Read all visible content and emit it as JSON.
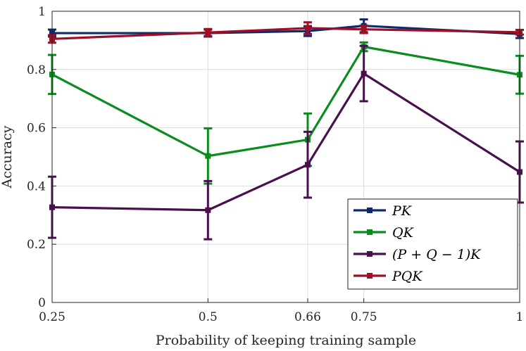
{
  "chart_data": {
    "type": "line",
    "xlabel": "Probability of keeping training sample",
    "ylabel": "Accuracy",
    "x": [
      0.25,
      0.5,
      0.66,
      0.75,
      1
    ],
    "x_tick_labels": [
      "0.25",
      "0.5",
      "0.66",
      "0.75",
      "1"
    ],
    "xlim": [
      0.25,
      1
    ],
    "ylim": [
      0,
      1
    ],
    "y_ticks": [
      0,
      0.2,
      0.4,
      0.6,
      0.8,
      1
    ],
    "y_tick_labels": [
      "0",
      "0.2",
      "0.4",
      "0.6",
      "0.8",
      "1"
    ],
    "grid": true,
    "legend_position": "bottom-right",
    "series": [
      {
        "name": "PK",
        "color": "#0f2a6b",
        "values": [
          0.925,
          0.925,
          0.932,
          0.95,
          0.922
        ],
        "errors": [
          0.012,
          0.012,
          0.017,
          0.022,
          0.014
        ]
      },
      {
        "name": "QK",
        "color": "#0a8c1e",
        "values": [
          0.783,
          0.503,
          0.559,
          0.878,
          0.782
        ],
        "errors": [
          0.067,
          0.095,
          0.09,
          0.015,
          0.065
        ]
      },
      {
        "name": "(P + Q − 1)K",
        "color": "#4a0f4e",
        "values": [
          0.327,
          0.317,
          0.473,
          0.786,
          0.448
        ],
        "errors": [
          0.105,
          0.1,
          0.113,
          0.095,
          0.105
        ]
      },
      {
        "name": "PQK",
        "color": "#9e0f26",
        "values": [
          0.905,
          0.927,
          0.942,
          0.938,
          0.928
        ],
        "errors": [
          0.013,
          0.012,
          0.02,
          0.013,
          0.008
        ]
      }
    ]
  }
}
